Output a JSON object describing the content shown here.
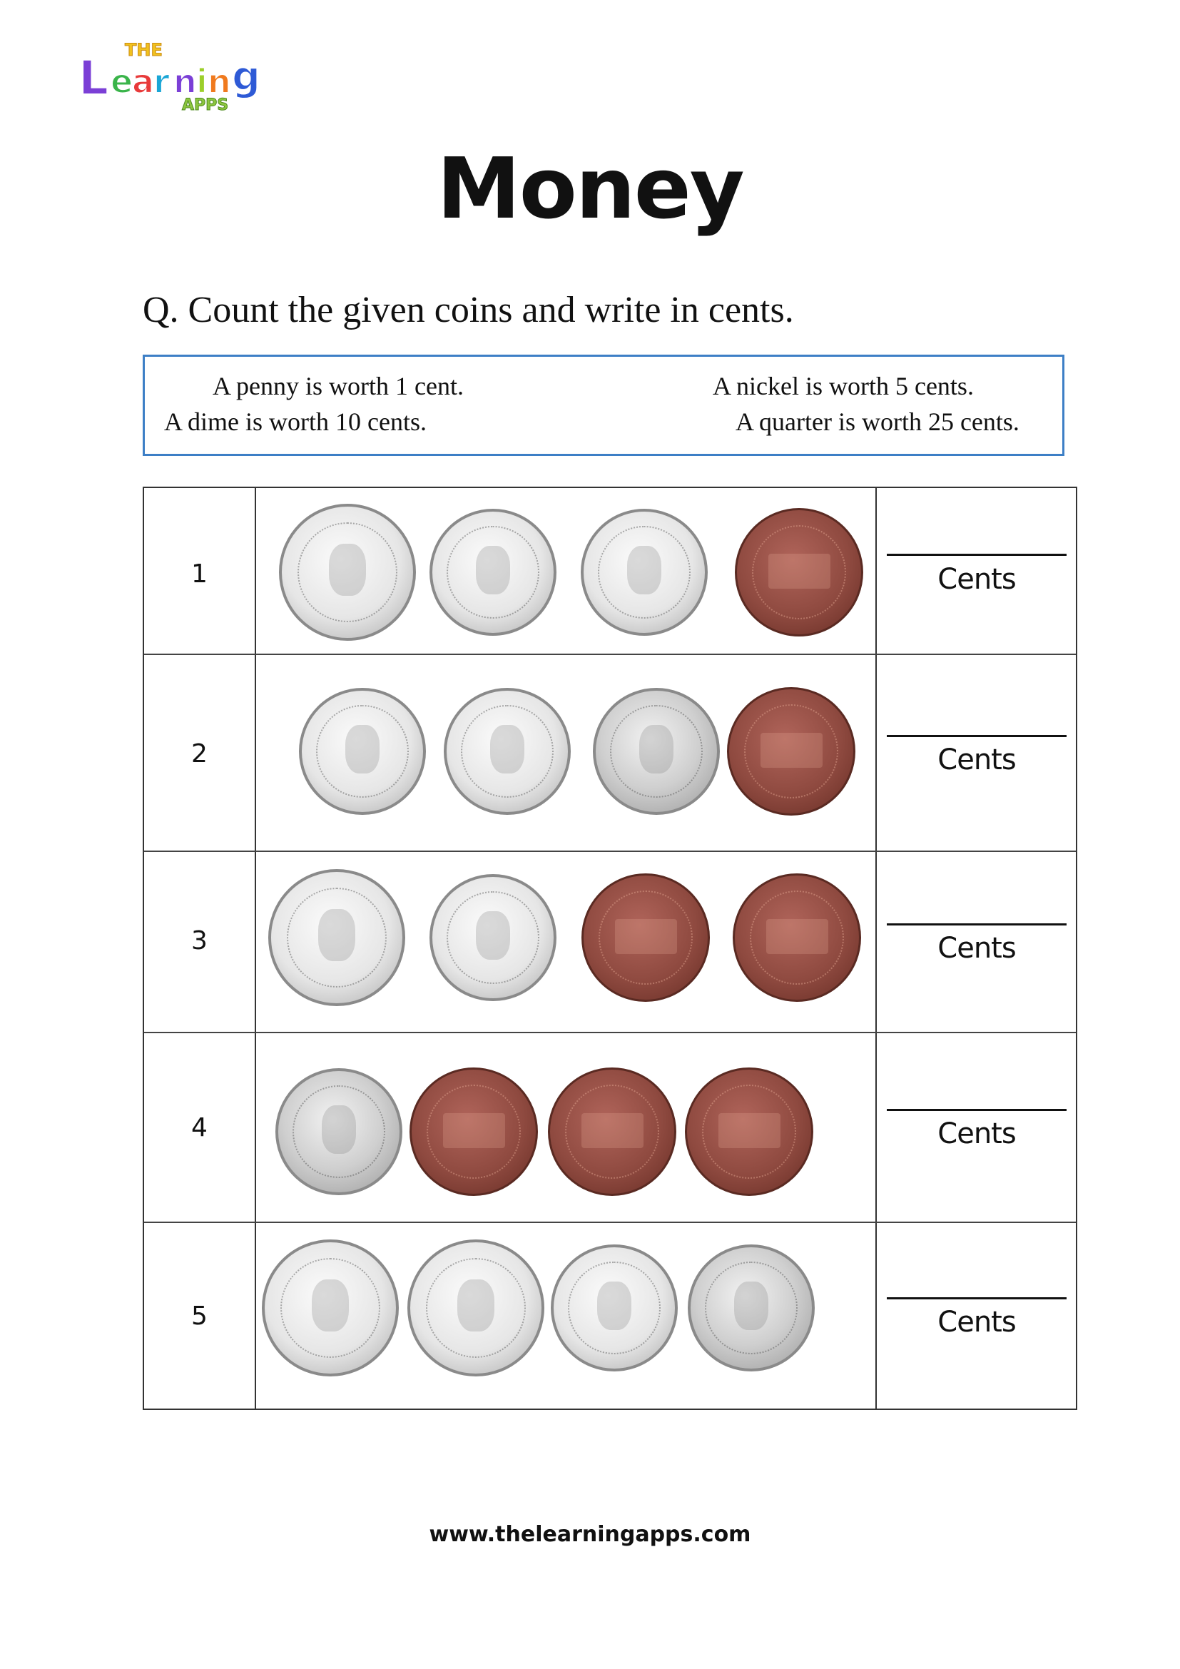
{
  "logo": {
    "text": "The Learning Apps",
    "colors": [
      "#7b3fd6",
      "#3ab44a",
      "#e83a3a",
      "#1aa6d6",
      "#f07a1e",
      "#2e5ad6",
      "#f2c21e"
    ]
  },
  "title": "Money",
  "question": "Q. Count the given coins and write in cents.",
  "info": {
    "penny": "A penny is worth 1 cent.",
    "nickel": "A nickel is worth 5 cents.",
    "dime": "A dime is worth 10 cents.",
    "quarter": "A quarter is worth 25 cents."
  },
  "rows": [
    {
      "number": "1",
      "coins": [
        "half-dollar",
        "dime",
        "dime",
        "penny"
      ],
      "unit": "Cents"
    },
    {
      "number": "2",
      "coins": [
        "dime",
        "dime",
        "nickel",
        "penny"
      ],
      "unit": "Cents"
    },
    {
      "number": "3",
      "coins": [
        "half-dollar",
        "dime",
        "penny",
        "penny"
      ],
      "unit": "Cents"
    },
    {
      "number": "4",
      "coins": [
        "nickel",
        "penny",
        "penny",
        "penny"
      ],
      "unit": "Cents"
    },
    {
      "number": "5",
      "coins": [
        "half-dollar",
        "half-dollar",
        "dime",
        "nickel"
      ],
      "unit": "Cents"
    }
  ],
  "footer": "www.thelearningapps.com",
  "colors": {
    "info_border": "#3d7fc6",
    "penny": "#8f4a40",
    "silver": "#d9d9d9"
  }
}
